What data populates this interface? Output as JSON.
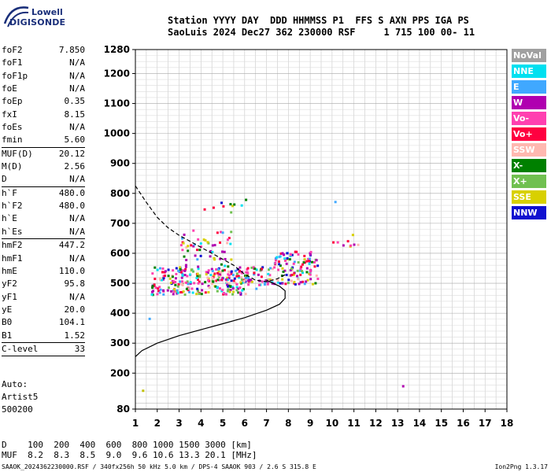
{
  "logo": {
    "line1": "Lowell",
    "line2": "DIGISONDE"
  },
  "header": {
    "line1": "Station YYYY DAY  DDD HHMMSS P1  FFS S AXN PPS IGA PS",
    "line2": "SaoLuis 2024 Dec27 362 230000 RSF     1 715 100 00- 11"
  },
  "params_a": [
    {
      "k": "foF2",
      "v": "7.850"
    },
    {
      "k": "foF1",
      "v": "N/A"
    },
    {
      "k": "foF1p",
      "v": "N/A"
    },
    {
      "k": "foE",
      "v": "N/A"
    },
    {
      "k": "foEp",
      "v": "0.35"
    },
    {
      "k": "fxI",
      "v": "8.15"
    },
    {
      "k": "foEs",
      "v": "N/A"
    },
    {
      "k": "fmin",
      "v": "5.60"
    }
  ],
  "params_b": [
    {
      "k": "MUF(D)",
      "v": "20.12"
    },
    {
      "k": "M(D)",
      "v": "2.56"
    },
    {
      "k": "D",
      "v": "N/A"
    }
  ],
  "params_c": [
    {
      "k": "h`F",
      "v": "480.0"
    },
    {
      "k": "h`F2",
      "v": "480.0"
    },
    {
      "k": "h`E",
      "v": "N/A"
    },
    {
      "k": "h`Es",
      "v": "N/A"
    }
  ],
  "params_d": [
    {
      "k": "hmF2",
      "v": "447.2"
    },
    {
      "k": "hmF1",
      "v": "N/A"
    },
    {
      "k": "hmE",
      "v": "110.0"
    },
    {
      "k": "yF2",
      "v": "95.8"
    },
    {
      "k": "yF1",
      "v": "N/A"
    },
    {
      "k": "yE",
      "v": "20.0"
    },
    {
      "k": "B0",
      "v": "104.1"
    },
    {
      "k": "B1",
      "v": "1.52"
    }
  ],
  "params_e": [
    {
      "k": "C-level",
      "v": "33"
    }
  ],
  "auto": {
    "l1": "Auto:",
    "l2": "Artist5",
    "l3": "500200"
  },
  "bottom": {
    "d_row": "D    100  200  400  600  800 1000 1500 3000 [km]",
    "muf_row": "MUF  8.2  8.3  8.5  9.0  9.6 10.6 13.3 20.1 [MHz]"
  },
  "footer": {
    "left": "SAAOK_2024362230000.RSF / 340fx256h 50 kHz 5.0 km / DPS-4 SAAOK 903 / 2.6 S 315.8 E",
    "right": "Ion2Png 1.3.17"
  },
  "legend": [
    {
      "label": "NoVal",
      "color": "#a0a0a0"
    },
    {
      "label": "NNE",
      "color": "#00e0f0"
    },
    {
      "label": "E",
      "color": "#40a8ff"
    },
    {
      "label": "W",
      "color": "#b000b0"
    },
    {
      "label": "Vo-",
      "color": "#ff40b0"
    },
    {
      "label": "Vo+",
      "color": "#ff0040"
    },
    {
      "label": "SSW",
      "color": "#ffb8b0"
    },
    {
      "label": "X-",
      "color": "#008000"
    },
    {
      "label": "X+",
      "color": "#70c050"
    },
    {
      "label": "SSE",
      "color": "#d8d000"
    },
    {
      "label": "NNW",
      "color": "#1010d0"
    }
  ],
  "chart_data": {
    "type": "scatter",
    "xlim": [
      1,
      18
    ],
    "ylim": [
      80,
      1280
    ],
    "x_ticks": [
      1,
      2,
      3,
      4,
      5,
      6,
      7,
      8,
      9,
      10,
      11,
      12,
      13,
      14,
      15,
      16,
      17,
      18
    ],
    "y_ticks": [
      80,
      200,
      300,
      400,
      500,
      600,
      700,
      800,
      900,
      1000,
      1100,
      1200,
      1280
    ],
    "grid": true,
    "profile_curve": [
      [
        1.0,
        255
      ],
      [
        1.3,
        275
      ],
      [
        2.0,
        300
      ],
      [
        3.0,
        325
      ],
      [
        4.0,
        345
      ],
      [
        5.0,
        365
      ],
      [
        6.0,
        385
      ],
      [
        7.0,
        410
      ],
      [
        7.6,
        430
      ],
      [
        7.85,
        450
      ],
      [
        7.85,
        475
      ],
      [
        7.6,
        490
      ],
      [
        7.0,
        510
      ]
    ],
    "trace_curve": [
      [
        1.0,
        825
      ],
      [
        1.5,
        770
      ],
      [
        2.0,
        720
      ],
      [
        2.5,
        685
      ],
      [
        3.0,
        660
      ],
      [
        3.5,
        640
      ],
      [
        4.0,
        620
      ],
      [
        4.5,
        600
      ],
      [
        5.0,
        580
      ],
      [
        5.5,
        560
      ],
      [
        6.0,
        530
      ],
      [
        6.5,
        510
      ],
      [
        7.0,
        505
      ],
      [
        7.5,
        515
      ],
      [
        7.9,
        530
      ]
    ],
    "echo_regions": [
      {
        "x": [
          1.7,
          6.1
        ],
        "y": [
          465,
          560
        ],
        "density": 0.55
      },
      {
        "x": [
          3.0,
          5.4
        ],
        "y": [
          560,
          680
        ],
        "density": 0.15
      },
      {
        "x": [
          4.0,
          6.2
        ],
        "y": [
          740,
          790
        ],
        "density": 0.08
      },
      {
        "x": [
          6.0,
          7.3
        ],
        "y": [
          480,
          560
        ],
        "density": 0.4
      },
      {
        "x": [
          7.3,
          9.3
        ],
        "y": [
          500,
          610
        ],
        "density": 0.45
      },
      {
        "x": [
          10.0,
          11.2
        ],
        "y": [
          625,
          645
        ],
        "density": 0.3
      }
    ],
    "isolated_points": [
      [
        1.3,
        145,
        "#c0c000"
      ],
      [
        13.2,
        160,
        "#b000b0"
      ],
      [
        1.6,
        385,
        "#40a8ff"
      ],
      [
        10.1,
        775,
        "#40a8ff"
      ],
      [
        10.9,
        665,
        "#d8d000"
      ]
    ]
  }
}
